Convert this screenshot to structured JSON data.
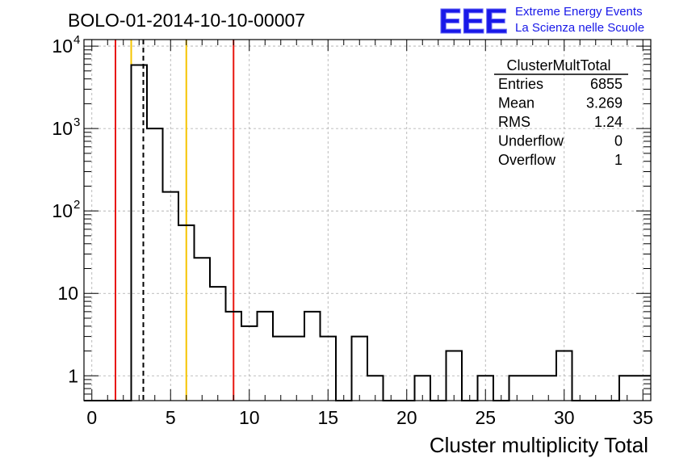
{
  "header": {
    "title": "BOLO-01-2014-10-10-00007",
    "logo_letters": "EEE",
    "logo_line1": "Extreme Energy Events",
    "logo_line2": "La Scienza nelle Scuole"
  },
  "colors": {
    "histogram": "#000000",
    "red_line": "#e8150f",
    "yellow_line": "#f5c400",
    "logo_blue": "#1818e8",
    "grid": "#aaaaaa"
  },
  "stats": {
    "title": "ClusterMultTotal",
    "rows": [
      {
        "label": "Entries",
        "value": "6855"
      },
      {
        "label": "Mean",
        "value": "3.269"
      },
      {
        "label": "RMS",
        "value": "1.24"
      },
      {
        "label": "Underflow",
        "value": "0"
      },
      {
        "label": "Overflow",
        "value": "1"
      }
    ]
  },
  "chart_data": {
    "type": "bar",
    "histogram_style": "step",
    "xlabel": "Cluster multiplicity Total",
    "ylabel": "",
    "y_scale": "log",
    "xlim": [
      -0.5,
      35.5
    ],
    "ylim": [
      0.5,
      12000
    ],
    "grid": true,
    "bin_width": 1,
    "bin_edges_start": -0.5,
    "values": [
      0,
      0,
      0,
      5900,
      1000,
      170,
      67,
      27,
      12,
      6,
      4,
      6,
      3,
      3,
      6,
      3,
      0,
      3,
      1,
      0,
      0,
      1,
      0,
      2,
      0,
      1,
      0,
      1,
      1,
      1,
      2,
      0,
      0,
      0,
      1,
      1
    ],
    "x_ticks": [
      0,
      5,
      10,
      15,
      20,
      25,
      30,
      35
    ],
    "x_tick_labels": [
      "0",
      "5",
      "10",
      "15",
      "20",
      "25",
      "30",
      "35"
    ],
    "y_ticks": [
      1,
      10,
      100,
      1000,
      10000
    ],
    "y_tick_labels": [
      {
        "base": "1",
        "exp": ""
      },
      {
        "base": "10",
        "exp": ""
      },
      {
        "base": "10",
        "exp": "2"
      },
      {
        "base": "10",
        "exp": "3"
      },
      {
        "base": "10",
        "exp": "4"
      }
    ],
    "vertical_lines": [
      {
        "x": 1.5,
        "color": "red",
        "style": "solid"
      },
      {
        "x": 2.5,
        "color": "yellow",
        "style": "solid"
      },
      {
        "x": 3.27,
        "color": "black",
        "style": "dashed"
      },
      {
        "x": 6.0,
        "color": "yellow",
        "style": "solid"
      },
      {
        "x": 9.0,
        "color": "red",
        "style": "solid"
      }
    ],
    "legend": "top-right"
  }
}
